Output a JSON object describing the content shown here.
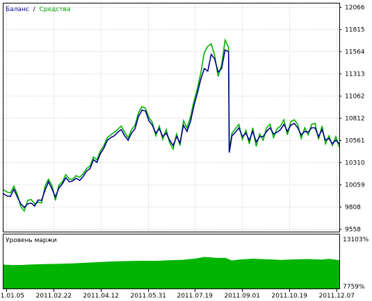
{
  "legend": {
    "balance": "Баланс",
    "separator": "/",
    "equity": "Средства"
  },
  "margin_panel": {
    "title": "Уровень маржи",
    "ytick_labels": [
      "13103%",
      "7759%"
    ]
  },
  "colors": {
    "balance": "#00008b",
    "equity": "#00b000",
    "margin_fill": "#00b400",
    "grid": "#c8c8c8"
  },
  "chart_data": [
    {
      "type": "line",
      "title": "",
      "series": [
        {
          "name": "Баланс"
        },
        {
          "name": "Средства"
        }
      ],
      "ylim": [
        9558,
        12066
      ],
      "yticks": [
        9558,
        9808,
        10059,
        10310,
        10561,
        10812,
        11062,
        11313,
        11564,
        11815,
        12066
      ],
      "xticks": [
        "2011.01.05",
        "2011.02.22",
        "2011.04.12",
        "2011.05.31",
        "2011.07.19",
        "2011.09.01",
        "2011.10.19",
        "2011.12.07"
      ],
      "x_index": [
        0,
        5,
        10,
        15,
        20,
        25,
        30,
        35,
        40,
        45,
        50,
        55,
        60,
        65,
        70,
        75,
        80,
        85,
        90,
        95,
        100,
        105,
        110,
        115,
        120,
        125,
        130,
        135,
        140,
        145,
        150,
        155,
        160,
        165,
        170,
        175,
        180,
        185,
        190,
        195,
        200,
        205,
        210,
        215,
        220,
        225,
        230,
        235,
        240,
        245,
        250,
        255,
        260,
        265,
        270,
        275,
        280,
        285,
        290,
        295,
        300,
        305,
        310,
        315,
        320,
        325,
        326,
        330,
        335,
        340,
        345,
        350,
        355,
        360,
        365,
        370,
        375,
        380,
        385,
        390,
        395,
        400,
        405,
        410,
        415,
        420,
        425,
        430,
        435,
        440,
        445,
        450,
        455,
        460,
        465,
        470,
        475,
        480,
        485
      ],
      "balance": [
        9955,
        9930,
        9925,
        10005,
        9920,
        9840,
        9800,
        9840,
        9850,
        9815,
        9885,
        9880,
        9995,
        10090,
        10010,
        9920,
        10020,
        10065,
        10135,
        10090,
        10100,
        10130,
        10105,
        10150,
        10210,
        10240,
        10340,
        10310,
        10410,
        10470,
        10560,
        10590,
        10610,
        10650,
        10680,
        10610,
        10560,
        10640,
        10690,
        10830,
        10900,
        10890,
        10780,
        10730,
        10640,
        10690,
        10600,
        10640,
        10560,
        10500,
        10600,
        10530,
        10730,
        10660,
        10770,
        10950,
        11090,
        11250,
        11370,
        11340,
        11530,
        11480,
        11330,
        11370,
        11580,
        11560,
        10420,
        10610,
        10650,
        10700,
        10600,
        10640,
        10560,
        10660,
        10540,
        10600,
        10600,
        10660,
        10700,
        10630,
        10650,
        10680,
        10740,
        10660,
        10730,
        10750,
        10700,
        10620,
        10660,
        10650,
        10700,
        10700,
        10600,
        10680,
        10560,
        10580,
        10520,
        10560,
        10520
      ],
      "equity": [
        10000,
        9975,
        9965,
        10040,
        9950,
        9810,
        9760,
        9880,
        9890,
        9840,
        9860,
        9850,
        10040,
        10120,
        10050,
        9880,
        10050,
        10090,
        10170,
        10120,
        10120,
        10160,
        10140,
        10180,
        10240,
        10270,
        10370,
        10340,
        10440,
        10500,
        10590,
        10620,
        10650,
        10680,
        10720,
        10650,
        10590,
        10680,
        10730,
        10870,
        10940,
        10920,
        10820,
        10760,
        10610,
        10720,
        10570,
        10680,
        10530,
        10460,
        10630,
        10500,
        10780,
        10700,
        10820,
        11000,
        11140,
        11320,
        11550,
        11620,
        11650,
        11520,
        11280,
        11410,
        11690,
        11610,
        10440,
        10640,
        10690,
        10740,
        10570,
        10670,
        10520,
        10700,
        10490,
        10630,
        10560,
        10700,
        10740,
        10590,
        10690,
        10720,
        10790,
        10620,
        10770,
        10790,
        10740,
        10580,
        10700,
        10620,
        10740,
        10750,
        10570,
        10720,
        10520,
        10610,
        10500,
        10600,
        10480
      ]
    },
    {
      "type": "area",
      "title": "Уровень маржи",
      "ylim": [
        7759,
        13103
      ],
      "yticks": [
        7759,
        13103
      ],
      "x_index": [
        0,
        10,
        20,
        30,
        40,
        60,
        80,
        100,
        120,
        140,
        160,
        180,
        200,
        220,
        240,
        260,
        280,
        290,
        300,
        310,
        320,
        330,
        340,
        360,
        380,
        400,
        420,
        440,
        460,
        470,
        480,
        485
      ],
      "values": [
        10050,
        10010,
        10000,
        10020,
        10060,
        10100,
        10130,
        10190,
        10260,
        10330,
        10400,
        10440,
        10470,
        10460,
        10520,
        10580,
        10740,
        10900,
        10830,
        10780,
        10800,
        10500,
        10600,
        10700,
        10640,
        10560,
        10620,
        10660,
        10600,
        10680,
        10580,
        10550
      ]
    }
  ]
}
